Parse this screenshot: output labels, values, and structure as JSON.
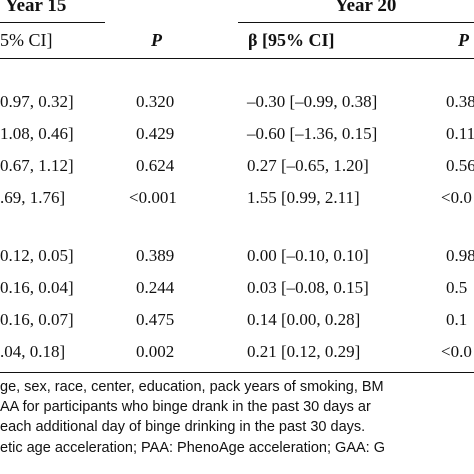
{
  "header": {
    "year15": "Year 15",
    "year20": "Year 20",
    "ci_col_left": "5% CI]",
    "p_col_left": "P",
    "beta_col_right": "β [95% CI]",
    "p_col_right": "P"
  },
  "rows": [
    {
      "ci15": "0.97, 0.32]",
      "p15": "0.320",
      "beta20": "–0.30 [–0.99, 0.38]",
      "p20": "0.38"
    },
    {
      "ci15": "1.08, 0.46]",
      "p15": "0.429",
      "beta20": "–0.60 [–1.36, 0.15]",
      "p20": "0.11"
    },
    {
      "ci15": "0.67, 1.12]",
      "p15": "0.624",
      "beta20": "0.27 [–0.65, 1.20]",
      "p20": "0.56"
    },
    {
      "ci15": ".69, 1.76]",
      "p15": "<0.001",
      "beta20": "1.55 [0.99, 2.11]",
      "p20": "<0.0"
    },
    {
      "ci15": "0.12, 0.05]",
      "p15": "0.389",
      "beta20": "0.00 [–0.10, 0.10]",
      "p20": "0.98"
    },
    {
      "ci15": "0.16, 0.04]",
      "p15": "0.244",
      "beta20": "0.03 [–0.08, 0.15]",
      "p20": "0.5"
    },
    {
      "ci15": "0.16, 0.07]",
      "p15": "0.475",
      "beta20": "0.14 [0.00, 0.28]",
      "p20": "0.1"
    },
    {
      "ci15": ".04, 0.18]",
      "p15": "0.002",
      "beta20": "0.21 [0.12, 0.29]",
      "p20": "<0.0"
    }
  ],
  "footnotes": [
    "ge, sex, race, center, education, pack years of smoking, BM",
    "AA for participants who binge drank in the past 30 days ar",
    "each additional day of binge drinking in the past 30 days.",
    "etic age acceleration; PAA: PhenoAge acceleration; GAA: G"
  ]
}
